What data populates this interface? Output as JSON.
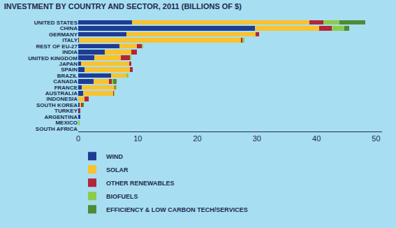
{
  "chart_data": {
    "type": "bar",
    "title": "INVESTMENT BY COUNTRY AND SECTOR, 2011 (BILLIONS OF $)",
    "orientation": "horizontal",
    "stacked": true,
    "grid": false,
    "legend": "bottom",
    "categories": [
      "UNITED STATES",
      "CHINA",
      "GERMANY",
      "ITALY",
      "REST OF EU-27",
      "INDIA",
      "UNITED KINGDOM",
      "JAPAN",
      "SPAIN",
      "BRAZIL",
      "CANADA",
      "FRANCE",
      "AUSTRALIA",
      "INDONESIA",
      "SOUTH KOREA",
      "TURKEY",
      "ARGENTINA",
      "MEXICO",
      "SOUTH AFRICA"
    ],
    "series": [
      {
        "name": "WIND",
        "color": "#1f3c93",
        "values": [
          9.0,
          29.7,
          8.1,
          0.1,
          6.9,
          4.5,
          2.7,
          0.5,
          1.1,
          5.5,
          2.6,
          0.6,
          0.8,
          0,
          0.2,
          0.1,
          0.3,
          0,
          0
        ]
      },
      {
        "name": "SOLAR",
        "color": "#f9c22e",
        "values": [
          29.8,
          10.8,
          21.7,
          27.2,
          3.0,
          4.4,
          4.5,
          8.1,
          7.6,
          2.6,
          2.5,
          5.5,
          5.1,
          1.0,
          0.3,
          0,
          0,
          0,
          0
        ]
      },
      {
        "name": "OTHER RENEWABLES",
        "color": "#b3253a",
        "values": [
          2.3,
          2.1,
          0.6,
          0.3,
          0.8,
          1.0,
          1.5,
          0.3,
          0.4,
          0,
          0.5,
          0.1,
          0.1,
          0.7,
          0.2,
          0.2,
          0,
          0,
          0
        ]
      },
      {
        "name": "BIOFUELS",
        "color": "#8ccc4a",
        "values": [
          2.8,
          2.1,
          0,
          0.3,
          0.2,
          0,
          0.2,
          0,
          0,
          0.3,
          0.3,
          0.2,
          0.1,
          0,
          0,
          0,
          0,
          0.2,
          0
        ]
      },
      {
        "name": "EFFICIENCY & LOW CARBON TECH/SERVICES",
        "color": "#4f8a35",
        "values": [
          4.3,
          0.8,
          0,
          0,
          0,
          0,
          0,
          0,
          0,
          0,
          0.6,
          0,
          0,
          0,
          0.2,
          0,
          0,
          0,
          0
        ]
      }
    ],
    "xlim": [
      0,
      51
    ],
    "xticks": [
      0,
      10,
      20,
      30,
      40,
      50
    ]
  }
}
